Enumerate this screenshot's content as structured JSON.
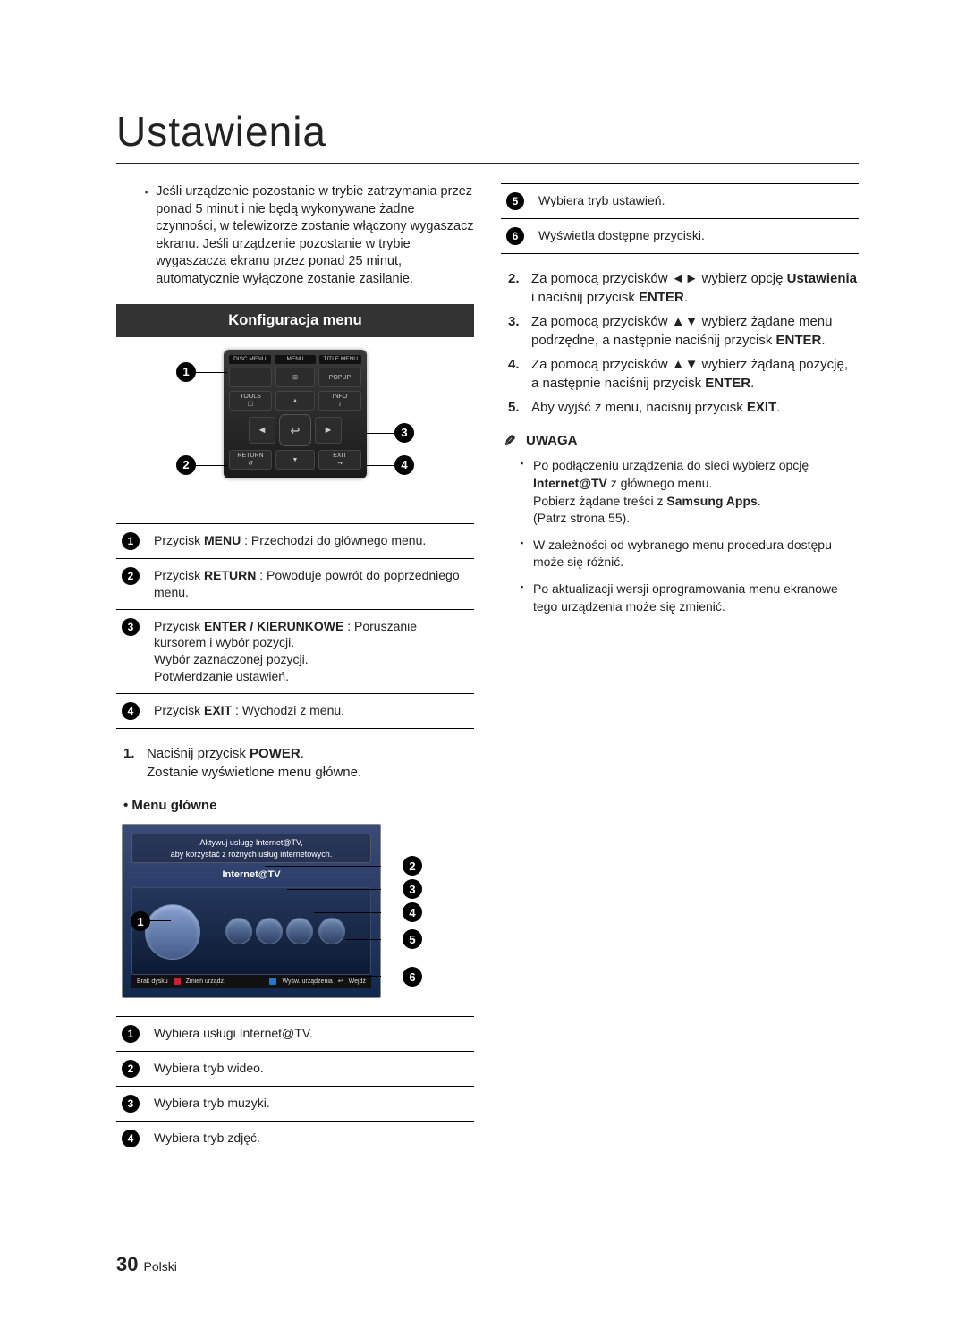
{
  "page_title": "Ustawienia",
  "intro_note": "Jeśli urządzenie pozostanie w trybie zatrzymania przez ponad 5 minut i nie będą wykonywane żadne czynności, w telewizorze zostanie włączony wygaszacz ekranu. Jeśli urządzenie pozostanie w trybie wygaszacza ekranu przez ponad 25 minut, automatycznie wyłączone zostanie zasilanie.",
  "section_bar": "Konfiguracja menu",
  "remote": {
    "top_labels": [
      "DISC MENU",
      "MENU",
      "TITLE MENU"
    ],
    "row1": {
      "left": "",
      "mid": "⊞",
      "right": "POPUP"
    },
    "row2": {
      "left": "TOOLS",
      "right": "INFO"
    },
    "row3": {
      "left": "RETURN",
      "right": "EXIT"
    },
    "enter": "↩"
  },
  "remote_table": [
    {
      "n": "1",
      "html": "Przycisk <b>MENU</b> : Przechodzi do głównego menu."
    },
    {
      "n": "2",
      "html": "Przycisk <b>RETURN</b> : Powoduje powrót do poprzedniego menu."
    },
    {
      "n": "3",
      "html": "Przycisk <b>ENTER / KIERUNKOWE</b> : Poruszanie kursorem i wybór pozycji.<br>Wybór zaznaczonej pozycji.<br>Potwierdzanie ustawień."
    },
    {
      "n": "4",
      "html": "Przycisk <b>EXIT</b> : Wychodzi z menu."
    }
  ],
  "steps_col1": [
    "Naciśnij przycisk <b>POWER</b>.<br>Zostanie wyświetlone menu główne."
  ],
  "main_menu_label": "Menu główne",
  "mm_banner1": "Aktywuj usługę Internet@TV,",
  "mm_banner2": "aby korzystać z różnych usług internetowych.",
  "mm_logo": "Internet@TV",
  "mm_footer": {
    "left": "Brak dysku",
    "a_color": "#c23",
    "a": "Zmień urządz.",
    "d_color": "#27c",
    "d": "Wyśw. urządzenia",
    "enter": "Wejdź"
  },
  "menu_table": [
    {
      "n": "1",
      "t": "Wybiera usługi Internet@TV."
    },
    {
      "n": "2",
      "t": "Wybiera tryb wideo."
    },
    {
      "n": "3",
      "t": "Wybiera tryb muzyki."
    },
    {
      "n": "4",
      "t": "Wybiera tryb zdjęć."
    }
  ],
  "menu_table_right": [
    {
      "n": "5",
      "t": "Wybiera tryb ustawień."
    },
    {
      "n": "6",
      "t": "Wyświetla dostępne przyciski."
    }
  ],
  "steps_col2": [
    "Za pomocą przycisków ◄► wybierz opcję <b>Ustawienia</b> i naciśnij przycisk <b>ENTER</b>.",
    "Za pomocą przycisków ▲▼ wybierz żądane menu podrzędne, a następnie naciśnij przycisk <b>ENTER</b>.",
    "Za pomocą przycisków ▲▼ wybierz żądaną pozycję, a następnie naciśnij przycisk <b>ENTER</b>.",
    "Aby wyjść z menu, naciśnij przycisk <b>EXIT</b>."
  ],
  "uwaga": "UWAGA",
  "notes": [
    "Po podłączeniu urządzenia do sieci wybierz opcję <b>Internet@TV</b> z głównego menu.<br>Pobierz żądane treści z <b>Samsung Apps</b>.<br>(Patrz strona 55).",
    "W zależności od wybranego menu procedura dostępu może się różnić.",
    "Po aktualizacji wersji oprogramowania menu ekranowe tego urządzenia może się zmienić."
  ],
  "page_num": "30",
  "page_lang": "Polski"
}
